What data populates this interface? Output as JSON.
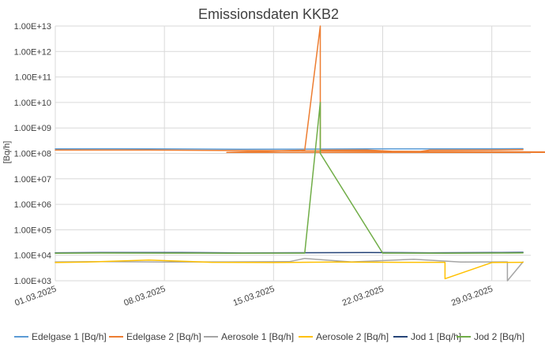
{
  "chart_data": {
    "type": "line",
    "title": "Emissionsdaten KKB2",
    "xlabel": "",
    "ylabel": "[Bq/h]",
    "yscale": "log",
    "ylim": [
      1000,
      10000000000000
    ],
    "y_tick_labels": [
      "1.00E+03",
      "1.00E+04",
      "1.00E+05",
      "1.00E+06",
      "1.00E+07",
      "1.00E+08",
      "1.00E+09",
      "1.00E+10",
      "1.00E+11",
      "1.00E+12",
      "1.00E+13"
    ],
    "x_tick_labels": [
      "01.03.2025",
      "08.03.2025",
      "15.03.2025",
      "22.03.2025",
      "29.03.2025"
    ],
    "x_range": [
      "01.03.2025",
      "31.03.2025"
    ],
    "grid": true,
    "legend_position": "bottom",
    "series": [
      {
        "name": "Edelgase 1 [Bq/h]",
        "color": "#5b9bd5",
        "x": [
          "01.03.2025",
          "05.03.2025",
          "09.03.2025",
          "13.03.2025",
          "17.03.2025",
          "21.03.2025",
          "25.03.2025",
          "29.03.2025",
          "31.03.2025"
        ],
        "values": [
          150000000,
          152000000,
          149000000,
          146000000,
          147000000,
          150000000,
          151000000,
          152000000,
          153000000
        ]
      },
      {
        "name": "Edelgase 2 [Bq/h]",
        "color": "#ed7d31",
        "x": [
          "01.03.2025",
          "04.03.2025",
          "06.03.2025",
          "07.03.2025",
          "07.04",
          "12.03.2025",
          "17.03.2025",
          "18.03.2025",
          "18.03.2025",
          "18.03.2025",
          "21.03.2025",
          "24.03.2025",
          "25.03.2025",
          "29.03.2025",
          "31.03.2025"
        ],
        "values": [
          135000000,
          136000000,
          135000000,
          135000000,
          110000000,
          110000000,
          134000000,
          10000000000000,
          1000000000000,
          134000000,
          135000000,
          110000000,
          134000000,
          135000000,
          140000000
        ]
      },
      {
        "name": "Aerosole 1 [Bq/h]",
        "color": "#a5a5a5",
        "x": [
          "01.03.2025",
          "04.03.2025",
          "08.03.2025",
          "12.03.2025",
          "16.03.2025",
          "17.03.2025",
          "20.03.2025",
          "24.03.2025",
          "27.03.2025",
          "30.03.2025",
          "30.03.2025",
          "31.03.2025"
        ],
        "values": [
          5500,
          5600,
          5400,
          5500,
          5600,
          7500,
          5500,
          7000,
          5400,
          5500,
          1000,
          5500
        ]
      },
      {
        "name": "Aerosole 2 [Bq/h]",
        "color": "#ffc000",
        "x": [
          "01.03.2025",
          "03.03.2025",
          "07.03.2025",
          "11.03.2025",
          "15.03.2025",
          "19.03.2025",
          "23.03.2025",
          "26.03.2025",
          "26.03.2025",
          "29.03.2025",
          "31.03.2025"
        ],
        "values": [
          5200,
          5400,
          6500,
          5300,
          5200,
          5400,
          5300,
          5300,
          1200,
          5200,
          5300
        ]
      },
      {
        "name": "Jod 1 [Bq/h]",
        "color": "#264478",
        "x": [
          "01.03.2025",
          "05.03.2025",
          "09.03.2025",
          "13.03.2025",
          "17.03.2025",
          "21.03.2025",
          "25.03.2025",
          "29.03.2025",
          "31.03.2025"
        ],
        "values": [
          12500,
          12800,
          12700,
          12400,
          12600,
          12800,
          12500,
          12700,
          13000
        ]
      },
      {
        "name": "Jod 2 [Bq/h]",
        "color": "#70ad47",
        "x": [
          "01.03.2025",
          "04.03.2025",
          "08.03.2025",
          "12.03.2025",
          "17.03.2025",
          "18.03.2025",
          "18.03.2025",
          "22.03.2025",
          "26.03.2025",
          "30.03.2025",
          "31.03.2025"
        ],
        "values": [
          12000,
          12200,
          12100,
          12000,
          12100,
          10000000000,
          100000000,
          12100,
          12000,
          12200,
          12300
        ]
      }
    ]
  }
}
